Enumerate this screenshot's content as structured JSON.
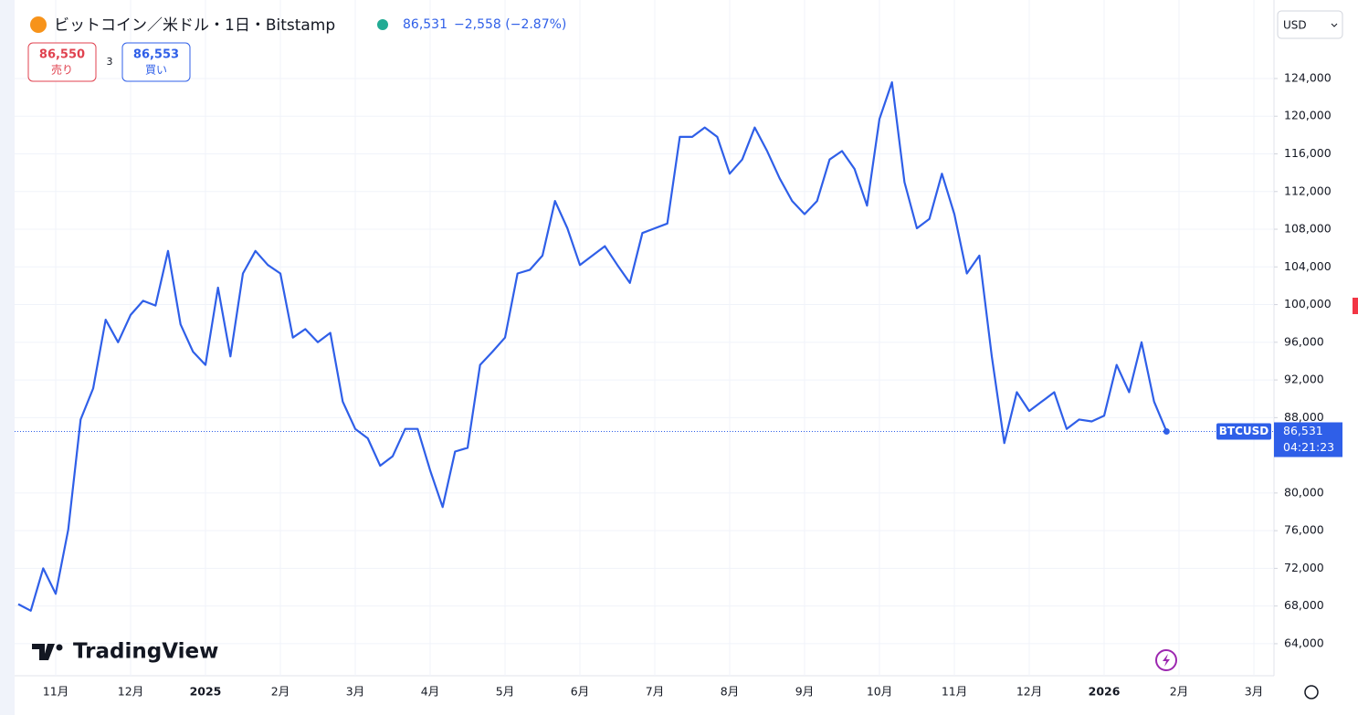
{
  "header": {
    "title": "ビットコイン／米ドル・1日・Bitstamp",
    "price": "86,531",
    "change": "−2,558 (−2.87%)",
    "sell_price": "86,550",
    "sell_label": "売り",
    "spread": "3",
    "buy_price": "86,553",
    "buy_label": "買い",
    "currency": "USD",
    "symbol": "BTCUSD",
    "countdown": "04:21:23",
    "last_price_label": "86,531",
    "brand": "TradingView"
  },
  "chart_data": {
    "type": "line",
    "grid": true,
    "categories": [
      null,
      null,
      null,
      "11月",
      null,
      null,
      null,
      null,
      null,
      "12月",
      null,
      null,
      null,
      null,
      null,
      "2025",
      null,
      null,
      null,
      null,
      null,
      "2月",
      null,
      null,
      null,
      null,
      null,
      "3月",
      null,
      null,
      null,
      null,
      null,
      "4月",
      null,
      null,
      null,
      null,
      null,
      "5月",
      null,
      null,
      null,
      null,
      null,
      "6月",
      null,
      null,
      null,
      null,
      null,
      "7月",
      null,
      null,
      null,
      null,
      null,
      "8月",
      null,
      null,
      null,
      null,
      null,
      "9月",
      null,
      null,
      null,
      null,
      null,
      "10月",
      null,
      null,
      null,
      null,
      null,
      "11月",
      null,
      null,
      null,
      null,
      null,
      "12月",
      null,
      null,
      null,
      null,
      null,
      "2026",
      null,
      null,
      null,
      null,
      null,
      "2月",
      null,
      null,
      null,
      null,
      null,
      "3月"
    ],
    "series": [
      {
        "name": "BTCUSD",
        "color": "#2f5fe8",
        "values": [
          68200,
          67500,
          72000,
          69300,
          76100,
          87800,
          91100,
          98400,
          96000,
          98900,
          100400,
          99900,
          105700,
          97900,
          95000,
          93600,
          101800,
          94500,
          103300,
          105700,
          104200,
          103300,
          96500,
          97400,
          96000,
          97000,
          89700,
          86800,
          85800,
          82900,
          83900,
          86800,
          86800,
          82400,
          78500,
          84400,
          84800,
          93600,
          95000,
          96500,
          103300,
          103700,
          105200,
          111000,
          108100,
          104200,
          105200,
          106200,
          104200,
          102300,
          107600,
          108100,
          108600,
          117800,
          117800,
          118800,
          117800,
          113900,
          115400,
          118800,
          116300,
          113400,
          111000,
          109600,
          111000,
          115400,
          116300,
          114400,
          110500,
          119700,
          123600,
          113000,
          108100,
          109100,
          113900,
          109600,
          103300,
          105200,
          94500,
          85300,
          90700,
          88700,
          89700,
          90700,
          86800,
          87800,
          87600,
          88200,
          93600,
          90700,
          96000,
          89700,
          86531,
          null,
          null,
          null,
          null,
          null,
          null,
          null
        ]
      }
    ],
    "ylim": [
      60600,
      131850
    ],
    "yticks": [
      {
        "value": 64000,
        "label": "64,000"
      },
      {
        "value": 68000,
        "label": "68,000"
      },
      {
        "value": 72000,
        "label": "72,000"
      },
      {
        "value": 76000,
        "label": "76,000"
      },
      {
        "value": 80000,
        "label": "80,000"
      },
      {
        "value": 88000,
        "label": "88,000"
      },
      {
        "value": 92000,
        "label": "92,000"
      },
      {
        "value": 96000,
        "label": "96,000"
      },
      {
        "value": 100000,
        "label": "100,000"
      },
      {
        "value": 104000,
        "label": "104,000"
      },
      {
        "value": 108000,
        "label": "108,000"
      },
      {
        "value": 112000,
        "label": "112,000"
      },
      {
        "value": 116000,
        "label": "116,000"
      },
      {
        "value": 120000,
        "label": "120,000"
      },
      {
        "value": 124000,
        "label": "124,000"
      }
    ]
  }
}
